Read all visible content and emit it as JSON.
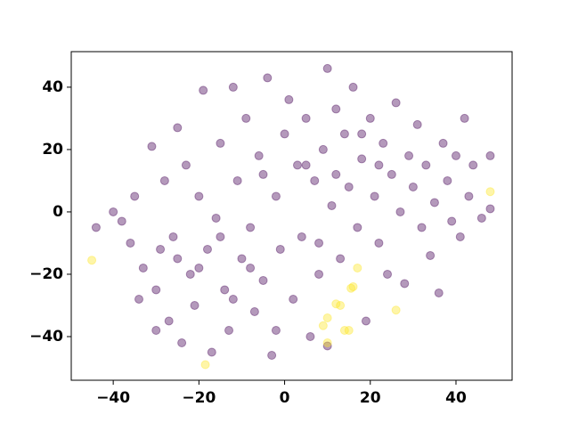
{
  "chart_data": {
    "type": "scatter",
    "xlim": [
      -49.8,
      53.1
    ],
    "ylim": [
      -54,
      51.4
    ],
    "xticks": [
      {
        "value": -40,
        "label": "−40"
      },
      {
        "value": -20,
        "label": "−20"
      },
      0,
      20,
      40
    ],
    "yticks": [
      {
        "value": -40,
        "label": "−40"
      },
      {
        "value": -20,
        "label": "−20"
      },
      0,
      20,
      40
    ],
    "series": [
      {
        "color": "#440154",
        "x": [
          -44,
          -40,
          -38,
          -36,
          -35,
          -33,
          -31,
          -30,
          -28,
          -27,
          -26,
          -25,
          -24,
          -23,
          -22,
          -21,
          -20,
          -19,
          -18,
          -17,
          -16,
          -15,
          -14,
          -13,
          -12,
          -11,
          -10,
          -9,
          -8,
          -7,
          -6,
          -5,
          -4,
          -3,
          -2,
          -1,
          0,
          1,
          2,
          3,
          4,
          5,
          6,
          7,
          8,
          9,
          10,
          10,
          11,
          12,
          13,
          14,
          15,
          16,
          17,
          18,
          19,
          20,
          21,
          22,
          23,
          24,
          25,
          26,
          27,
          28,
          29,
          30,
          31,
          32,
          33,
          34,
          35,
          36,
          37,
          38,
          39,
          40,
          41,
          42,
          43,
          44,
          46,
          48,
          48,
          -34,
          -29,
          -25,
          -20,
          -15,
          -12,
          -8,
          -5,
          5,
          12,
          18,
          22,
          -2,
          8,
          -30
        ],
        "y": [
          -5,
          0,
          -3,
          -10,
          5,
          -18,
          21,
          -25,
          10,
          -35,
          -8,
          27,
          -42,
          15,
          -20,
          -30,
          5,
          39,
          -12,
          -45,
          -2,
          22,
          -25,
          -38,
          40,
          10,
          -15,
          30,
          -5,
          -32,
          18,
          -22,
          43,
          -46,
          5,
          -12,
          25,
          36,
          -28,
          15,
          -8,
          30,
          -40,
          10,
          -20,
          20,
          46,
          -43,
          2,
          33,
          -15,
          25,
          8,
          40,
          -5,
          17,
          -35,
          30,
          5,
          -10,
          22,
          -20,
          12,
          35,
          0,
          -23,
          18,
          8,
          28,
          -5,
          15,
          -14,
          3,
          -26,
          22,
          10,
          -3,
          18,
          -8,
          30,
          5,
          15,
          -2,
          18,
          1,
          -28,
          -12,
          -15,
          -18,
          -8,
          -28,
          -18,
          12,
          15,
          12,
          25,
          15,
          -38,
          -10,
          -38
        ]
      },
      {
        "color": "#fde725",
        "x": [
          -45,
          -18.5,
          9,
          10,
          12,
          13,
          14,
          15,
          15.5,
          16,
          17,
          26,
          48,
          10
        ],
        "y": [
          -15.5,
          -49,
          -36.5,
          -34,
          -29.5,
          -30,
          -38,
          -38,
          -24.5,
          -24,
          -18,
          -31.5,
          6.5,
          -42
        ]
      }
    ]
  }
}
